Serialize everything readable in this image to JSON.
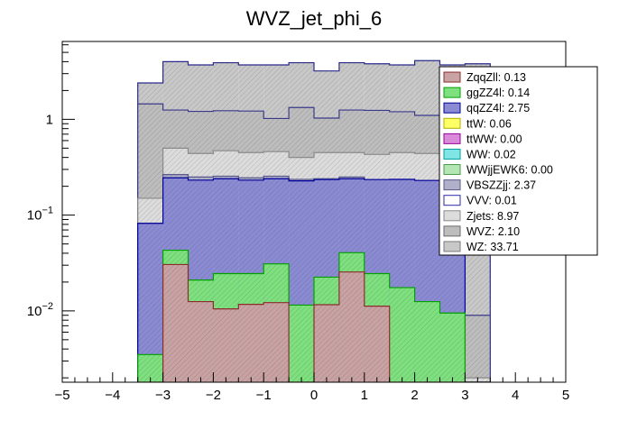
{
  "chart_data": {
    "type": "histogram-stacked",
    "title": "WVZ_jet_phi_6",
    "xlabel": "",
    "ylabel": "",
    "xlim": [
      -5,
      5
    ],
    "ylim": [
      0.0018,
      6.5
    ],
    "y_scale": "log",
    "grid": false,
    "legend_position": "top-right",
    "x_ticks": [
      {
        "value": -5,
        "label": "−5"
      },
      {
        "value": -4,
        "label": "−4"
      },
      {
        "value": -3,
        "label": "−3"
      },
      {
        "value": -2,
        "label": "−2"
      },
      {
        "value": -1,
        "label": "−1"
      },
      {
        "value": 0,
        "label": "0"
      },
      {
        "value": 1,
        "label": "1"
      },
      {
        "value": 2,
        "label": "2"
      },
      {
        "value": 3,
        "label": "3"
      },
      {
        "value": 4,
        "label": "4"
      },
      {
        "value": 5,
        "label": "5"
      }
    ],
    "y_ticks": [
      {
        "value": 0.01,
        "base": "10",
        "exp": "−2"
      },
      {
        "value": 0.1,
        "base": "10",
        "exp": "−1"
      },
      {
        "value": 1,
        "base": "1",
        "exp": ""
      }
    ],
    "bin_edges": [
      -3.5,
      -3.0,
      -2.5,
      -2.0,
      -1.5,
      -1.0,
      -0.5,
      0.0,
      0.5,
      1.0,
      1.5,
      2.0,
      2.5,
      3.0,
      3.5
    ],
    "stack_totals": {
      "ZqqZll": [
        0.0001,
        0.0305,
        0.0125,
        0.0105,
        0.0117,
        0.0122,
        0.0001,
        0.0116,
        0.0255,
        0.0112,
        0.0001,
        0.0001,
        0.0001,
        0.0001
      ],
      "ggZZ4l": [
        0.0035,
        0.043,
        0.021,
        0.0245,
        0.0245,
        0.031,
        0.0115,
        0.0225,
        0.0405,
        0.0245,
        0.0175,
        0.0125,
        0.0095,
        0.0001
      ],
      "qqZZ4l": [
        0.082,
        0.245,
        0.232,
        0.24,
        0.232,
        0.24,
        0.228,
        0.235,
        0.24,
        0.235,
        0.236,
        0.23,
        0.232,
        0.001
      ],
      "VBSZZjj": [
        0.082,
        0.265,
        0.25,
        0.255,
        0.245,
        0.255,
        0.236,
        0.24,
        0.25,
        0.235,
        0.236,
        0.23,
        0.232,
        0.001
      ],
      "Zjets": [
        0.15,
        0.5,
        0.44,
        0.47,
        0.45,
        0.46,
        0.4,
        0.45,
        0.45,
        0.43,
        0.45,
        0.44,
        0.43,
        0.002
      ],
      "WVZ": [
        1.45,
        1.25,
        1.21,
        1.23,
        1.22,
        1.02,
        1.33,
        1.03,
        1.25,
        1.24,
        1.2,
        1.1,
        1.25,
        0.009
      ],
      "WZ": [
        2.4,
        4.0,
        3.7,
        3.9,
        3.7,
        3.7,
        3.9,
        3.2,
        3.9,
        3.8,
        3.7,
        4.1,
        3.7,
        3.8
      ]
    },
    "legend": [
      {
        "name": "ZqqZll: 0.13",
        "fill": "#c9a3a3",
        "stroke": "#8b2d2d"
      },
      {
        "name": "ggZZ4l: 0.14",
        "fill": "#7fe07f",
        "stroke": "#00a000"
      },
      {
        "name": "qqZZ4l: 2.75",
        "fill": "#8b8bd3",
        "stroke": "#00009a"
      },
      {
        "name": "ttW: 0.06",
        "fill": "#ffff66",
        "stroke": "#b0b000"
      },
      {
        "name": "ttWW: 0.00",
        "fill": "#d98bd9",
        "stroke": "#9a009a"
      },
      {
        "name": "WW: 0.02",
        "fill": "#7fe5e5",
        "stroke": "#00a0a0"
      },
      {
        "name": "WWjjEWK6: 0.00",
        "fill": "#b3e6b3",
        "stroke": "#4a9a4a"
      },
      {
        "name": "VBSZZjj: 2.37",
        "fill": "#b0b0c8",
        "stroke": "#5a5a8a"
      },
      {
        "name": "VVV: 0.01",
        "fill": "#ffffff",
        "stroke": "#2a2aaa"
      },
      {
        "name": "Zjets: 8.97",
        "fill": "#dcdcdc",
        "stroke": "#8a8a8a"
      },
      {
        "name": "WVZ: 2.10",
        "fill": "#bdbdbd",
        "stroke": "#6a6a6a"
      },
      {
        "name": "WZ: 33.71",
        "fill": "#c8c8c8",
        "stroke": "#7a7a7a"
      }
    ],
    "series_styles": {
      "ZqqZll": {
        "fill": "#c9a3a3",
        "stroke": "#8b2d2d"
      },
      "ggZZ4l": {
        "fill": "#7fe07f",
        "stroke": "#00a000"
      },
      "qqZZ4l": {
        "fill": "#8b8bd3",
        "stroke": "#00009a"
      },
      "VBSZZjj": {
        "fill": "#b0b0c8",
        "stroke": "#5a5a8a"
      },
      "Zjets": {
        "fill": "#dcdcdc",
        "stroke": "#8a8a8a"
      },
      "WVZ": {
        "fill": "#bdbdbd",
        "stroke": "#3a3a8a"
      },
      "WZ": {
        "fill": "#c8c8c8",
        "stroke": "#2a2a8a"
      }
    }
  }
}
